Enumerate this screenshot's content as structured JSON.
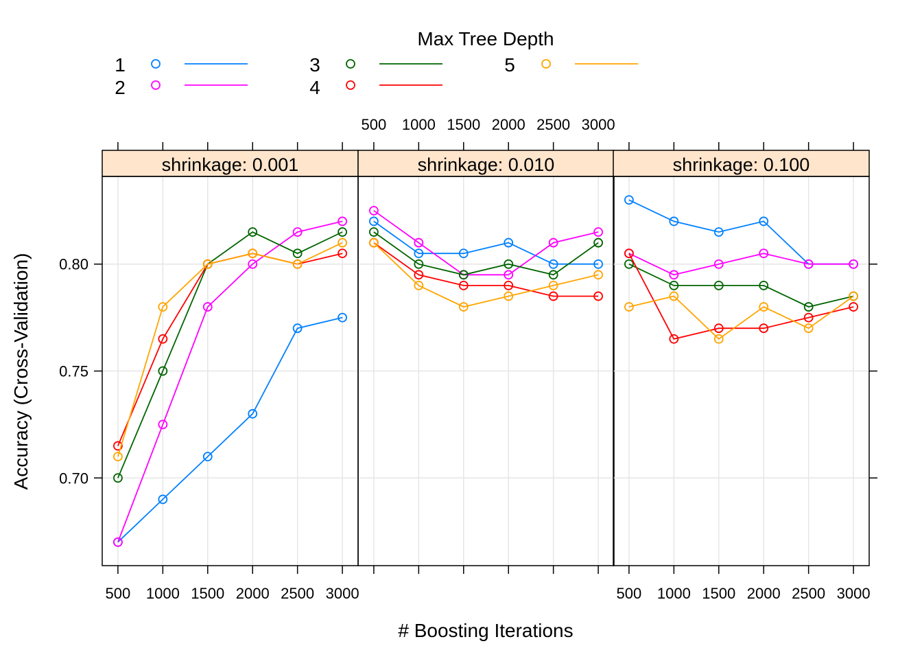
{
  "chart_data": {
    "type": "line",
    "legend": {
      "title": "Max Tree Depth",
      "placement": "top"
    },
    "xlabel": "# Boosting Iterations",
    "ylabel": "Accuracy (Cross-Validation)",
    "x_ticks": [
      "500",
      "1000",
      "1500",
      "2000",
      "2500",
      "3000"
    ],
    "y_ticks": [
      "0.70",
      "0.75",
      "0.80"
    ],
    "x": [
      500,
      1000,
      1500,
      2000,
      2500,
      3000
    ],
    "xlim": [
      325,
      3175
    ],
    "ylim": [
      0.659,
      0.841
    ],
    "grid": true,
    "series_meta": [
      {
        "name": "1",
        "color": "#0080ff"
      },
      {
        "name": "2",
        "color": "#ff00ff"
      },
      {
        "name": "3",
        "color": "#006400"
      },
      {
        "name": "4",
        "color": "#ff0000"
      },
      {
        "name": "5",
        "color": "#ffa500"
      }
    ],
    "panels": [
      {
        "strip": "shrinkage: 0.001",
        "series": [
          {
            "name": "1",
            "values": [
              0.67,
              0.69,
              0.71,
              0.73,
              0.77,
              0.775
            ]
          },
          {
            "name": "2",
            "values": [
              0.67,
              0.725,
              0.78,
              0.8,
              0.815,
              0.82
            ]
          },
          {
            "name": "3",
            "values": [
              0.7,
              0.75,
              0.8,
              0.815,
              0.805,
              0.815
            ]
          },
          {
            "name": "4",
            "values": [
              0.715,
              0.765,
              0.8,
              0.805,
              0.8,
              0.805
            ]
          },
          {
            "name": "5",
            "values": [
              0.71,
              0.78,
              0.8,
              0.805,
              0.8,
              0.81
            ]
          }
        ]
      },
      {
        "strip": "shrinkage: 0.010",
        "series": [
          {
            "name": "1",
            "values": [
              0.82,
              0.805,
              0.805,
              0.81,
              0.8,
              0.8
            ]
          },
          {
            "name": "2",
            "values": [
              0.825,
              0.81,
              0.795,
              0.795,
              0.81,
              0.815
            ]
          },
          {
            "name": "3",
            "values": [
              0.815,
              0.8,
              0.795,
              0.8,
              0.795,
              0.81
            ]
          },
          {
            "name": "4",
            "values": [
              0.81,
              0.795,
              0.79,
              0.79,
              0.785,
              0.785
            ]
          },
          {
            "name": "5",
            "values": [
              0.81,
              0.79,
              0.78,
              0.785,
              0.79,
              0.795
            ]
          }
        ]
      },
      {
        "strip": "shrinkage: 0.100",
        "series": [
          {
            "name": "1",
            "values": [
              0.83,
              0.82,
              0.815,
              0.82,
              0.8,
              0.8
            ]
          },
          {
            "name": "2",
            "values": [
              0.805,
              0.795,
              0.8,
              0.805,
              0.8,
              0.8
            ]
          },
          {
            "name": "3",
            "values": [
              0.8,
              0.79,
              0.79,
              0.79,
              0.78,
              0.785
            ]
          },
          {
            "name": "4",
            "values": [
              0.805,
              0.765,
              0.77,
              0.77,
              0.775,
              0.78
            ]
          },
          {
            "name": "5",
            "values": [
              0.78,
              0.785,
              0.765,
              0.78,
              0.77,
              0.785
            ]
          }
        ]
      }
    ]
  }
}
